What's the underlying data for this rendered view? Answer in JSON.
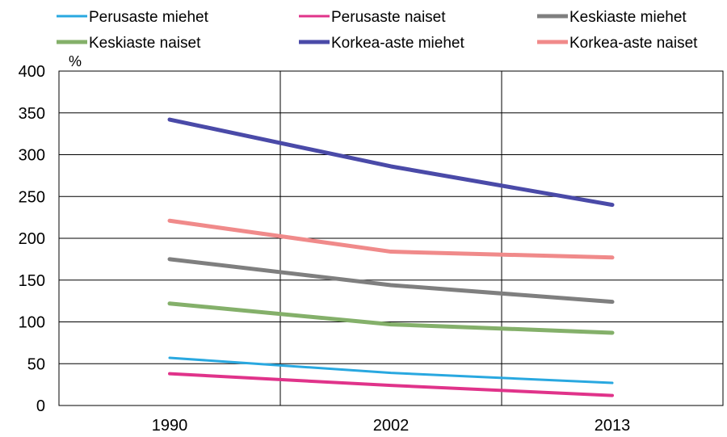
{
  "chart_data": {
    "type": "line",
    "categories": [
      "1990",
      "2002",
      "2013"
    ],
    "ylabel": "%",
    "ylim": [
      0,
      400
    ],
    "yticks": [
      0,
      50,
      100,
      150,
      200,
      250,
      300,
      350,
      400
    ],
    "grid": true,
    "legend_position": "top",
    "series": [
      {
        "name": "Perusaste miehet",
        "color": "#29a8e0",
        "values": [
          57,
          39,
          27
        ]
      },
      {
        "name": "Perusaste naiset",
        "color": "#e0338a",
        "values": [
          38,
          24,
          12
        ]
      },
      {
        "name": "Keskiaste miehet",
        "color": "#7f7f7f",
        "values": [
          175,
          144,
          124
        ]
      },
      {
        "name": "Keskiaste naiset",
        "color": "#84b06a",
        "values": [
          122,
          97,
          87
        ]
      },
      {
        "name": "Korkea-aste miehet",
        "color": "#4a4aa8",
        "values": [
          342,
          286,
          240
        ]
      },
      {
        "name": "Korkea-aste naiset",
        "color": "#f08a8a",
        "values": [
          221,
          184,
          177
        ]
      }
    ]
  }
}
